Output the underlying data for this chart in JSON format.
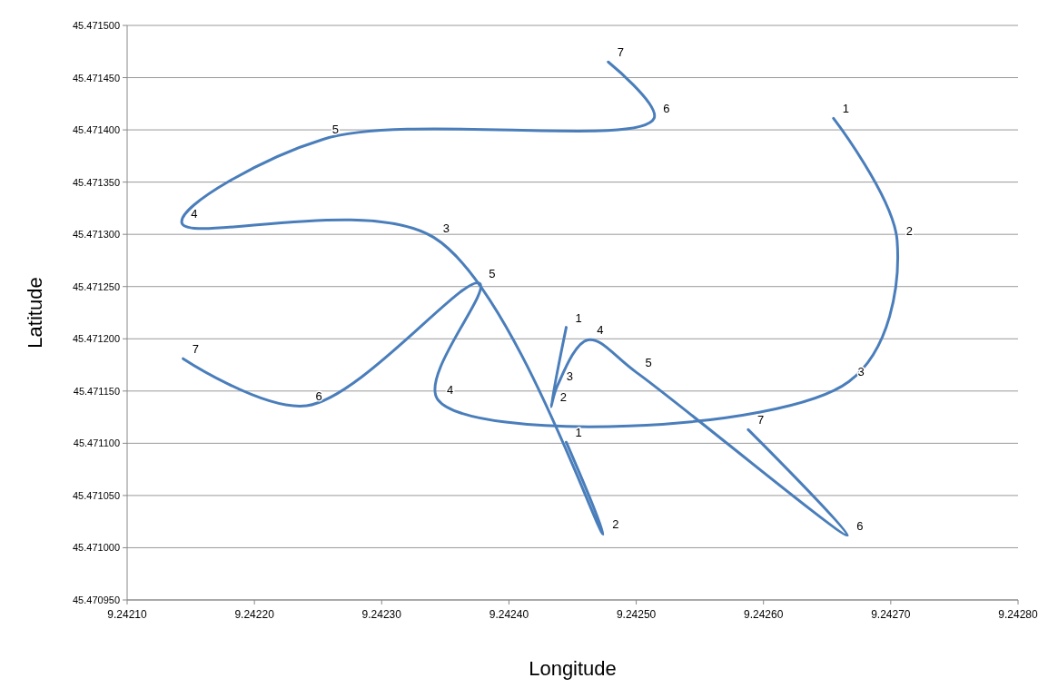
{
  "chart_data": {
    "type": "line",
    "xlabel": "Longitude",
    "ylabel": "Latitude",
    "xlim": [
      9.2421,
      9.2428
    ],
    "xticks": [
      {
        "value": 9.2421,
        "label": "9.24210"
      },
      {
        "value": 9.2422,
        "label": "9.24220"
      },
      {
        "value": 9.2423,
        "label": "9.24230"
      },
      {
        "value": 9.2424,
        "label": "9.24240"
      },
      {
        "value": 9.2425,
        "label": "9.24250"
      },
      {
        "value": 9.2426,
        "label": "9.24260"
      },
      {
        "value": 9.2427,
        "label": "9.24270"
      },
      {
        "value": 9.2428,
        "label": "9.24280"
      }
    ],
    "ylim": [
      45.47095,
      45.4715
    ],
    "yticks": [
      {
        "value": 45.47095,
        "label": "45.470950"
      },
      {
        "value": 45.471,
        "label": "45.471000"
      },
      {
        "value": 45.47105,
        "label": "45.471050"
      },
      {
        "value": 45.4711,
        "label": "45.471100"
      },
      {
        "value": 45.47115,
        "label": "45.471150"
      },
      {
        "value": 45.4712,
        "label": "45.471200"
      },
      {
        "value": 45.47125,
        "label": "45.471250"
      },
      {
        "value": 45.4713,
        "label": "45.471300"
      },
      {
        "value": 45.47135,
        "label": "45.471350"
      },
      {
        "value": 45.4714,
        "label": "45.471400"
      },
      {
        "value": 45.47145,
        "label": "45.471450"
      },
      {
        "value": 45.4715,
        "label": "45.471500"
      }
    ],
    "grid": "y",
    "marker": "none",
    "line_style": "solid",
    "series": [
      {
        "color": "#4a7ebb",
        "x": [
          9.242655,
          9.242705,
          9.242667,
          9.242344,
          9.242377,
          9.242241,
          9.242144
        ],
        "values": [
          45.471411,
          45.471294,
          45.471159,
          45.471142,
          45.471253,
          45.471136,
          45.471181
        ]
      },
      {
        "color": "#4a7ebb",
        "x": [
          9.242445,
          9.242433,
          9.242438,
          9.242462,
          9.2425,
          9.242666,
          9.242588
        ],
        "values": [
          45.471211,
          45.471135,
          45.471155,
          45.471199,
          45.471168,
          45.471012,
          45.471113
        ]
      },
      {
        "color": "#4a7ebb",
        "x": [
          9.242445,
          9.242474,
          9.242341,
          9.242143,
          9.242254,
          9.242514,
          9.242478
        ],
        "values": [
          45.471101,
          45.471013,
          45.471297,
          45.471311,
          45.471391,
          45.471411,
          45.471465
        ]
      }
    ],
    "annotations": [
      {
        "text": "1",
        "x": 9.242655,
        "y": 45.471411
      },
      {
        "text": "2",
        "x": 9.242705,
        "y": 45.471294
      },
      {
        "text": "3",
        "x": 9.242667,
        "y": 45.471159
      },
      {
        "text": "4",
        "x": 9.242344,
        "y": 45.471142
      },
      {
        "text": "5",
        "x": 9.242377,
        "y": 45.471253
      },
      {
        "text": "6",
        "x": 9.242241,
        "y": 45.471136
      },
      {
        "text": "7",
        "x": 9.242144,
        "y": 45.471181
      },
      {
        "text": "1",
        "x": 9.242445,
        "y": 45.471211
      },
      {
        "text": "2",
        "x": 9.242433,
        "y": 45.471135
      },
      {
        "text": "3",
        "x": 9.242438,
        "y": 45.471155
      },
      {
        "text": "4",
        "x": 9.242462,
        "y": 45.471199
      },
      {
        "text": "5",
        "x": 9.2425,
        "y": 45.471168
      },
      {
        "text": "6",
        "x": 9.242666,
        "y": 45.471012
      },
      {
        "text": "7",
        "x": 9.242588,
        "y": 45.471113
      },
      {
        "text": "1",
        "x": 9.242445,
        "y": 45.471101
      },
      {
        "text": "2",
        "x": 9.242474,
        "y": 45.471013
      },
      {
        "text": "3",
        "x": 9.242341,
        "y": 45.471297
      },
      {
        "text": "4",
        "x": 9.242143,
        "y": 45.471311
      },
      {
        "text": "5",
        "x": 9.242254,
        "y": 45.471391
      },
      {
        "text": "6",
        "x": 9.242514,
        "y": 45.471411
      },
      {
        "text": "7",
        "x": 9.242478,
        "y": 45.471465
      }
    ]
  }
}
